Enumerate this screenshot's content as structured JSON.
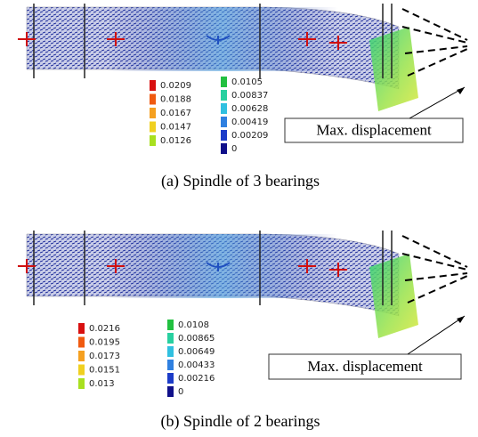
{
  "panels": [
    {
      "legend_left": [
        "0.0209",
        "0.0188",
        "0.0167",
        "0.0147",
        "0.0126"
      ],
      "legend_right": [
        "0.0105",
        "0.00837",
        "0.00628",
        "0.00419",
        "0.00209",
        "0"
      ],
      "annotation": "Max. displacement",
      "caption": "(a)  Spindle of 3 bearings"
    },
    {
      "legend_left": [
        "0.0216",
        "0.0195",
        "0.0173",
        "0.0151",
        "0.013"
      ],
      "legend_right": [
        "0.0108",
        "0.00865",
        "0.00649",
        "0.00433",
        "0.00216",
        "0"
      ],
      "annotation": "Max. displacement",
      "caption": "(b)  Spindle of 2 bearings"
    }
  ]
}
